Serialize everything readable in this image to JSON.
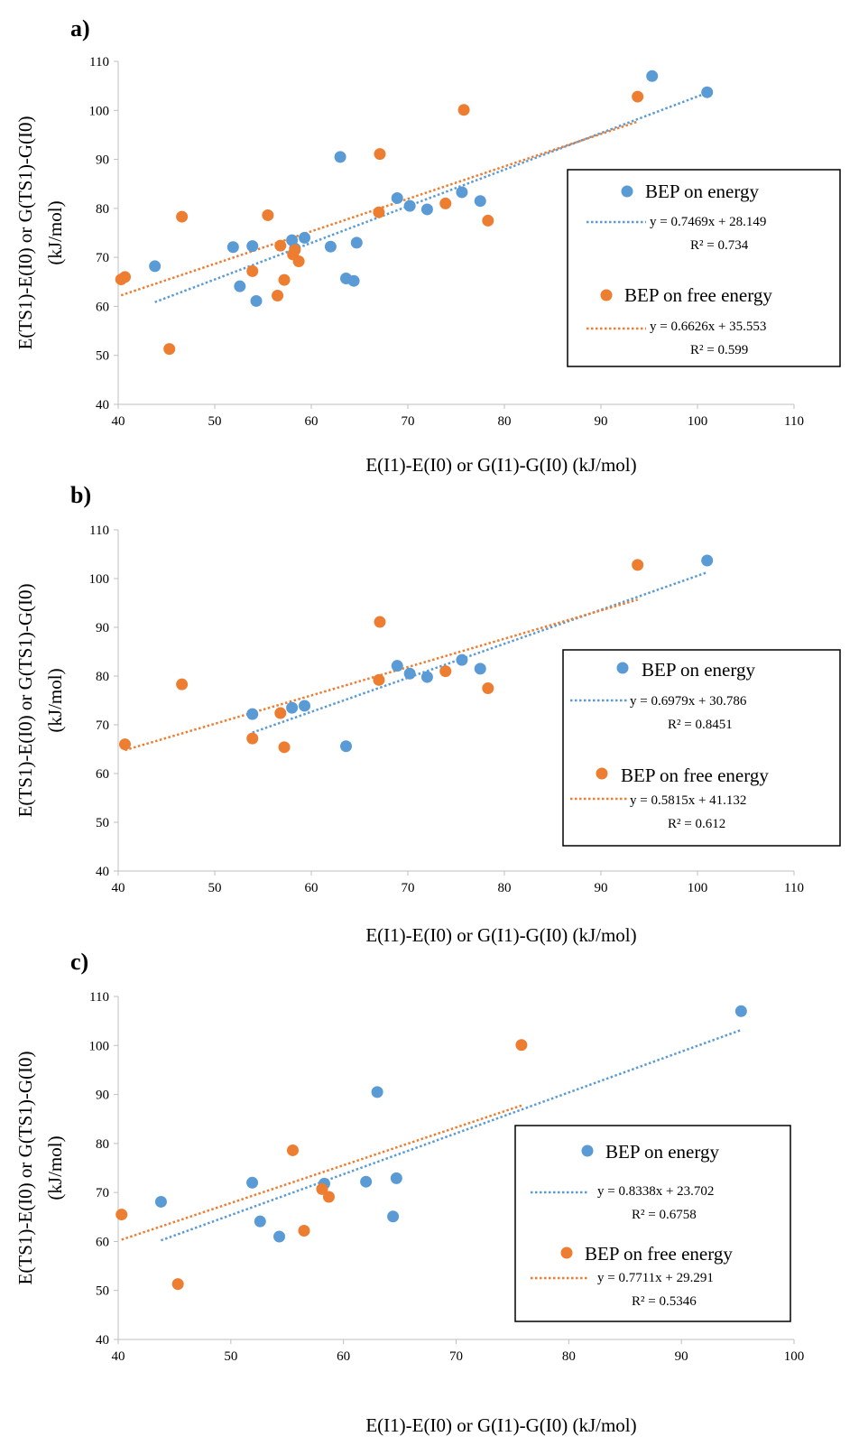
{
  "colors": {
    "energy": "#5b9bd5",
    "free_energy": "#ed7d31",
    "axis": "#bfbfbf",
    "text": "#000000"
  },
  "chart_data": [
    {
      "type": "scatter",
      "panel_label": "a)",
      "xlabel": "E(I1)-E(I0) or G(I1)-G(I0) (kJ/mol)",
      "ylabel_line1": "E(TS1)-E(I0) or G(TS1)-G(I0)",
      "ylabel_line2": "(kJ/mol)",
      "xlim": [
        40,
        110
      ],
      "ylim": [
        40,
        110
      ],
      "xticks": [
        "40",
        "50",
        "60",
        "70",
        "80",
        "90",
        "100",
        "110"
      ],
      "yticks": [
        "40",
        "50",
        "60",
        "70",
        "80",
        "90",
        "100",
        "110"
      ],
      "grid": false,
      "legend_position": "right",
      "series": [
        {
          "name": "BEP on energy",
          "color": "#5b9bd5",
          "trend_label": "y = 0.7469x + 28.149",
          "r2_label": "R² = 0.734",
          "slope": 0.7469,
          "intercept": 28.149,
          "trend_x": [
            43.8,
            101.0
          ],
          "points": [
            [
              43.8,
              68.2
            ],
            [
              51.9,
              72.1
            ],
            [
              52.6,
              64.1
            ],
            [
              53.9,
              72.3
            ],
            [
              54.3,
              61.1
            ],
            [
              58.0,
              73.5
            ],
            [
              58.3,
              71.8
            ],
            [
              59.3,
              74.0
            ],
            [
              62.0,
              72.2
            ],
            [
              63.0,
              90.5
            ],
            [
              63.6,
              65.7
            ],
            [
              64.4,
              65.2
            ],
            [
              64.7,
              73.0
            ],
            [
              68.9,
              82.1
            ],
            [
              70.2,
              80.5
            ],
            [
              72.0,
              79.8
            ],
            [
              75.6,
              83.3
            ],
            [
              77.5,
              81.5
            ],
            [
              95.3,
              107.0
            ],
            [
              101.0,
              103.7
            ]
          ]
        },
        {
          "name": "BEP on free energy",
          "color": "#ed7d31",
          "trend_label": "y = 0.6626x + 35.553",
          "r2_label": "R² = 0.599",
          "slope": 0.6626,
          "intercept": 35.553,
          "trend_x": [
            40.3,
            93.8
          ],
          "points": [
            [
              40.3,
              65.5
            ],
            [
              40.7,
              66.0
            ],
            [
              45.3,
              51.3
            ],
            [
              46.6,
              78.3
            ],
            [
              53.9,
              67.2
            ],
            [
              55.5,
              78.6
            ],
            [
              56.5,
              62.2
            ],
            [
              56.8,
              72.4
            ],
            [
              57.2,
              65.4
            ],
            [
              58.1,
              70.6
            ],
            [
              58.3,
              71.5
            ],
            [
              58.7,
              69.2
            ],
            [
              67.0,
              79.2
            ],
            [
              67.1,
              91.1
            ],
            [
              73.9,
              81.0
            ],
            [
              75.8,
              100.1
            ],
            [
              78.3,
              77.5
            ],
            [
              93.8,
              102.8
            ]
          ]
        }
      ]
    },
    {
      "type": "scatter",
      "panel_label": "b)",
      "xlabel": "E(I1)-E(I0) or G(I1)-G(I0) (kJ/mol)",
      "ylabel_line1": "E(TS1)-E(I0) or G(TS1)-G(I0)",
      "ylabel_line2": "(kJ/mol)",
      "xlim": [
        40,
        110
      ],
      "ylim": [
        40,
        110
      ],
      "xticks": [
        "40",
        "50",
        "60",
        "70",
        "80",
        "90",
        "100",
        "110"
      ],
      "yticks": [
        "40",
        "50",
        "60",
        "70",
        "80",
        "90",
        "100",
        "110"
      ],
      "grid": false,
      "legend_position": "right",
      "series": [
        {
          "name": "BEP on energy",
          "color": "#5b9bd5",
          "trend_label": "y = 0.6979x + 30.786",
          "r2_label": "R² = 0.8451",
          "slope": 0.6979,
          "intercept": 30.786,
          "trend_x": [
            53.9,
            101.0
          ],
          "points": [
            [
              53.9,
              72.2
            ],
            [
              58.0,
              73.5
            ],
            [
              59.3,
              73.9
            ],
            [
              63.6,
              65.6
            ],
            [
              68.9,
              82.1
            ],
            [
              70.2,
              80.5
            ],
            [
              72.0,
              79.8
            ],
            [
              75.6,
              83.3
            ],
            [
              77.5,
              81.5
            ],
            [
              101.0,
              103.7
            ]
          ]
        },
        {
          "name": "BEP on free energy",
          "color": "#ed7d31",
          "trend_label": "y = 0.5815x + 41.132",
          "r2_label": "R² = 0.612",
          "slope": 0.5815,
          "intercept": 41.132,
          "trend_x": [
            40.7,
            93.8
          ],
          "points": [
            [
              40.7,
              66.0
            ],
            [
              46.6,
              78.3
            ],
            [
              53.9,
              67.2
            ],
            [
              56.8,
              72.4
            ],
            [
              57.2,
              65.4
            ],
            [
              67.0,
              79.2
            ],
            [
              67.1,
              91.1
            ],
            [
              73.9,
              81.0
            ],
            [
              78.3,
              77.5
            ],
            [
              93.8,
              102.8
            ]
          ]
        }
      ]
    },
    {
      "type": "scatter",
      "panel_label": "c)",
      "xlabel": "E(I1)-E(I0) or G(I1)-G(I0) (kJ/mol)",
      "ylabel_line1": "E(TS1)-E(I0) or G(TS1)-G(I0)",
      "ylabel_line2": "(kJ/mol)",
      "xlim": [
        40,
        100
      ],
      "ylim": [
        40,
        110
      ],
      "xticks": [
        "40",
        "50",
        "60",
        "70",
        "80",
        "90",
        "100"
      ],
      "yticks": [
        "40",
        "50",
        "60",
        "70",
        "80",
        "90",
        "100",
        "110"
      ],
      "grid": false,
      "legend_position": "right",
      "series": [
        {
          "name": "BEP on energy",
          "color": "#5b9bd5",
          "trend_label": "y = 0.8338x + 23.702",
          "r2_label": "R² = 0.6758",
          "slope": 0.8338,
          "intercept": 23.702,
          "trend_x": [
            43.8,
            95.3
          ],
          "points": [
            [
              43.8,
              68.1
            ],
            [
              51.9,
              72.0
            ],
            [
              52.6,
              64.1
            ],
            [
              54.3,
              61.0
            ],
            [
              58.3,
              71.8
            ],
            [
              62.0,
              72.2
            ],
            [
              63.0,
              90.5
            ],
            [
              64.4,
              65.1
            ],
            [
              64.7,
              72.9
            ],
            [
              95.3,
              107.0
            ]
          ]
        },
        {
          "name": "BEP on free energy",
          "color": "#ed7d31",
          "trend_label": "y = 0.7711x + 29.291",
          "r2_label": "R² = 0.5346",
          "slope": 0.7711,
          "intercept": 29.291,
          "trend_x": [
            40.3,
            75.8
          ],
          "points": [
            [
              40.3,
              65.5
            ],
            [
              45.3,
              51.3
            ],
            [
              55.5,
              78.6
            ],
            [
              56.5,
              62.2
            ],
            [
              58.1,
              70.7
            ],
            [
              58.7,
              69.1
            ],
            [
              75.8,
              100.1
            ]
          ]
        }
      ]
    }
  ]
}
